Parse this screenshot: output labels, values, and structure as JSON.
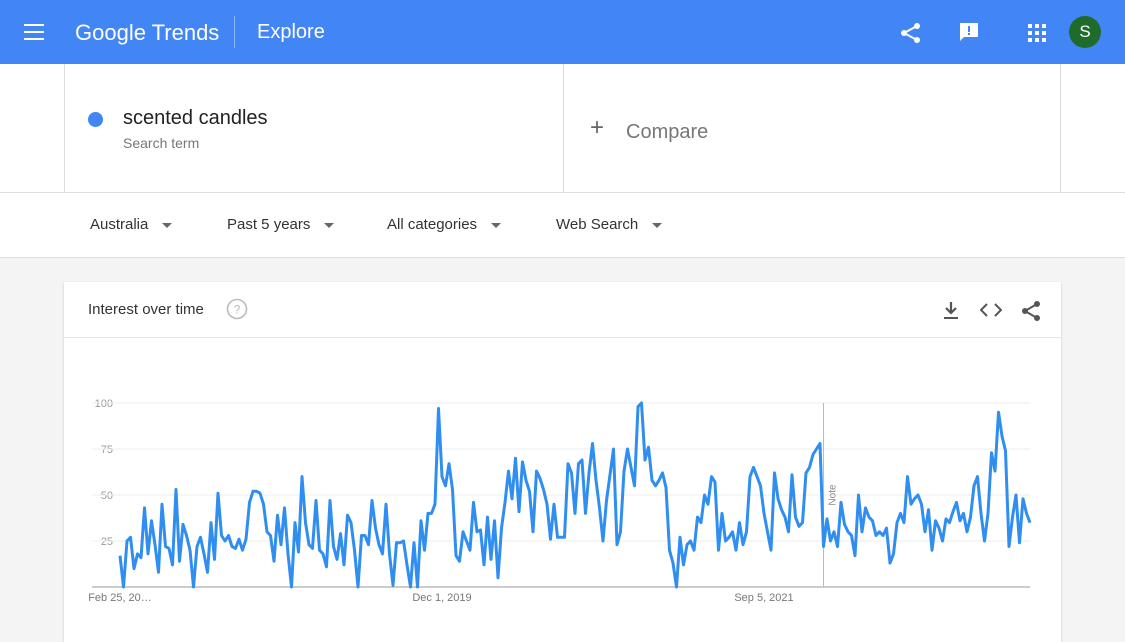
{
  "header": {
    "logo": "Google Trends",
    "title": "Explore",
    "avatar": "S"
  },
  "search": {
    "term": "scented candles",
    "subtitle": "Search term",
    "compare": "Compare"
  },
  "filters": [
    "Australia",
    "Past 5 years",
    "All categories",
    "Web Search"
  ],
  "card": {
    "title": "Interest over time",
    "chart_data": {
      "type": "line",
      "color": "#2f8ef0",
      "values": [
        17,
        0,
        25,
        27,
        10,
        18,
        16,
        43,
        18,
        36,
        23,
        8,
        45,
        22,
        21,
        12,
        53,
        14,
        34,
        28,
        20,
        0,
        22,
        27,
        18,
        8,
        35,
        15,
        51,
        28,
        25,
        28,
        22,
        21,
        26,
        20,
        26,
        46,
        52,
        52,
        51,
        45,
        30,
        28,
        14,
        39,
        23,
        43,
        18,
        0,
        35,
        19,
        60,
        35,
        23,
        21,
        47,
        20,
        18,
        11,
        47,
        22,
        15,
        29,
        12,
        39,
        35,
        20,
        0,
        28,
        28,
        23,
        47,
        32,
        23,
        18,
        45,
        18,
        1,
        24,
        24,
        25,
        12,
        0,
        24,
        0,
        36,
        20,
        40,
        40,
        45,
        97,
        60,
        55,
        67,
        53,
        17,
        14,
        30,
        25,
        20,
        46,
        30,
        31,
        12,
        38,
        15,
        36,
        5,
        32,
        46,
        63,
        48,
        70,
        41,
        68,
        58,
        52,
        30,
        63,
        59,
        53,
        45,
        26,
        45,
        27,
        27,
        27,
        67,
        62,
        40,
        67,
        69,
        40,
        62,
        78,
        58,
        43,
        25,
        47,
        61,
        75,
        23,
        30,
        63,
        75,
        65,
        55,
        98,
        100,
        69,
        76,
        58,
        55,
        58,
        62,
        54,
        20,
        13,
        0,
        27,
        12,
        23,
        25,
        20,
        38,
        35,
        50,
        45,
        60,
        57,
        20,
        40,
        25,
        27,
        30,
        20,
        35,
        23,
        30,
        60,
        65,
        60,
        55,
        40,
        30,
        20,
        62,
        48,
        42,
        38,
        30,
        61,
        38,
        33,
        35,
        62,
        65,
        72,
        75,
        78,
        22,
        37,
        25,
        30,
        22,
        46,
        34,
        30,
        28,
        17,
        50,
        30,
        43,
        38,
        36,
        28,
        30,
        28,
        32,
        13,
        18,
        35,
        40,
        35,
        60,
        45,
        48,
        50,
        45,
        30,
        42,
        20,
        36,
        32,
        25,
        37,
        35,
        41,
        46,
        36,
        40,
        30,
        38,
        55,
        60,
        40,
        25,
        40,
        73,
        63,
        95,
        82,
        74,
        22,
        38,
        50,
        24,
        48,
        40,
        35
      ],
      "xlim": [
        0,
        260
      ],
      "xticks": [
        {
          "value": 0,
          "label": "Feb 25, 20…"
        },
        {
          "value": 92,
          "label": "Dec 1, 2019"
        },
        {
          "value": 184,
          "label": "Sep 5, 2021"
        }
      ],
      "ylim": [
        0,
        100
      ],
      "yticks": [
        25,
        50,
        75,
        100
      ],
      "grid": true,
      "note": {
        "label": "Note",
        "x": 201
      }
    }
  }
}
